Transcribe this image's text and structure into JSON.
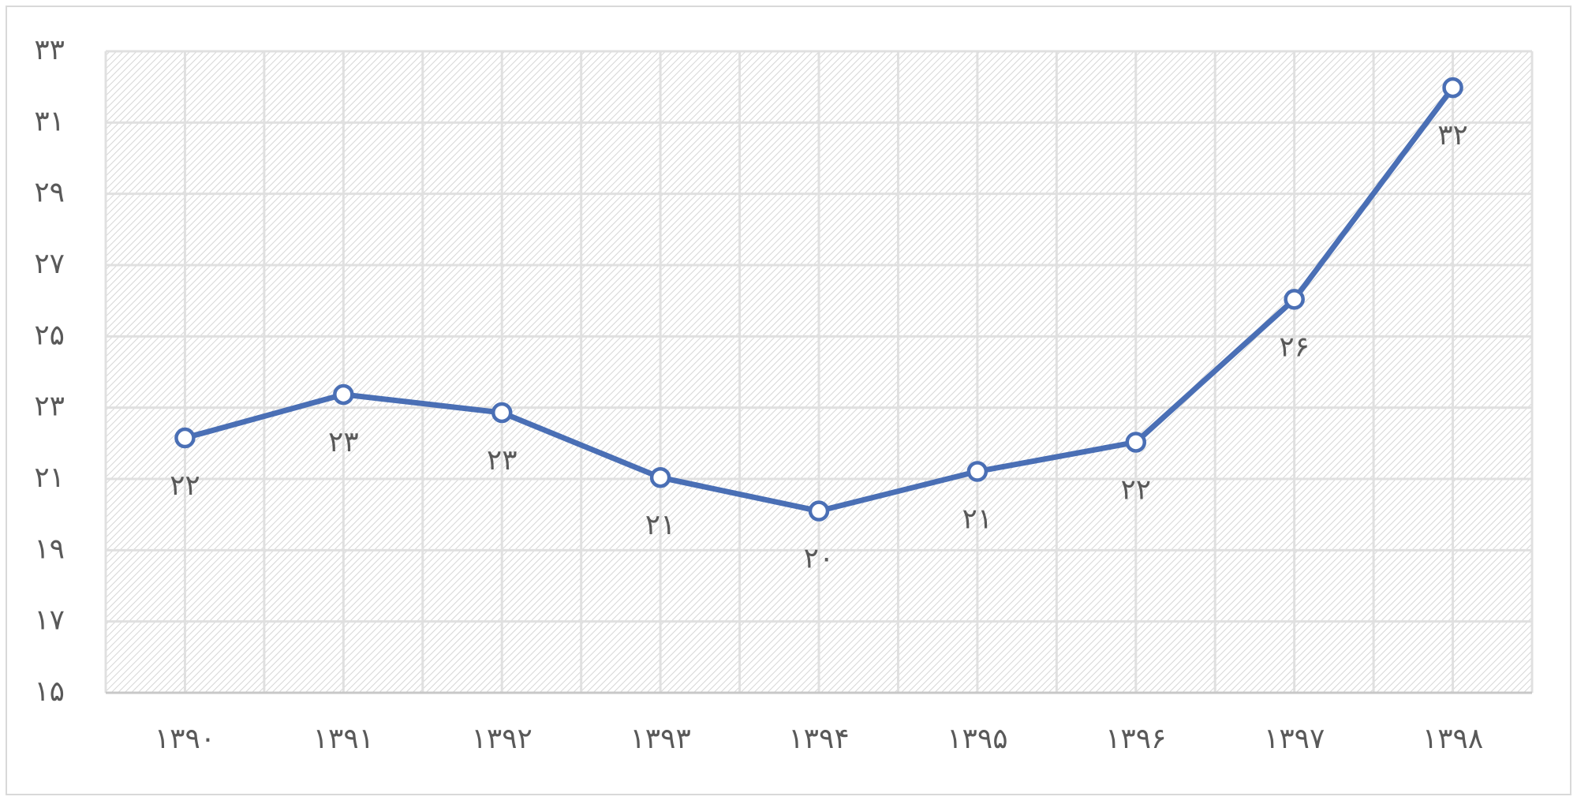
{
  "chart_data": {
    "type": "line",
    "categories": [
      "۱۳۹۰",
      "۱۳۹۱",
      "۱۳۹۲",
      "۱۳۹۳",
      "۱۳۹۴",
      "۱۳۹۵",
      "۱۳۹۶",
      "۱۳۹۷",
      "۱۳۹۸"
    ],
    "series": [
      {
        "color": "#4a6fb5",
        "values": [
          22.15,
          23.37,
          22.86,
          21.04,
          20.1,
          21.21,
          22.03,
          26.04,
          31.98
        ],
        "value_labels": [
          "۲۲",
          "۲۳",
          "۲۳",
          "۲۱",
          "۲۰",
          "۲۱",
          "۲۲",
          "۲۶",
          "۳۲"
        ]
      }
    ],
    "ylim": [
      15,
      33
    ],
    "yticks": [
      {
        "value": 15,
        "label": "۱۵"
      },
      {
        "value": 17,
        "label": "۱۷"
      },
      {
        "value": 19,
        "label": "۱۹"
      },
      {
        "value": 21,
        "label": "۲۱"
      },
      {
        "value": 23,
        "label": "۲۳"
      },
      {
        "value": 25,
        "label": "۲۵"
      },
      {
        "value": 27,
        "label": "۲۷"
      },
      {
        "value": 29,
        "label": "۲۹"
      },
      {
        "value": 31,
        "label": "۳۱"
      },
      {
        "value": 33,
        "label": "۳۳"
      }
    ],
    "grid": true
  }
}
